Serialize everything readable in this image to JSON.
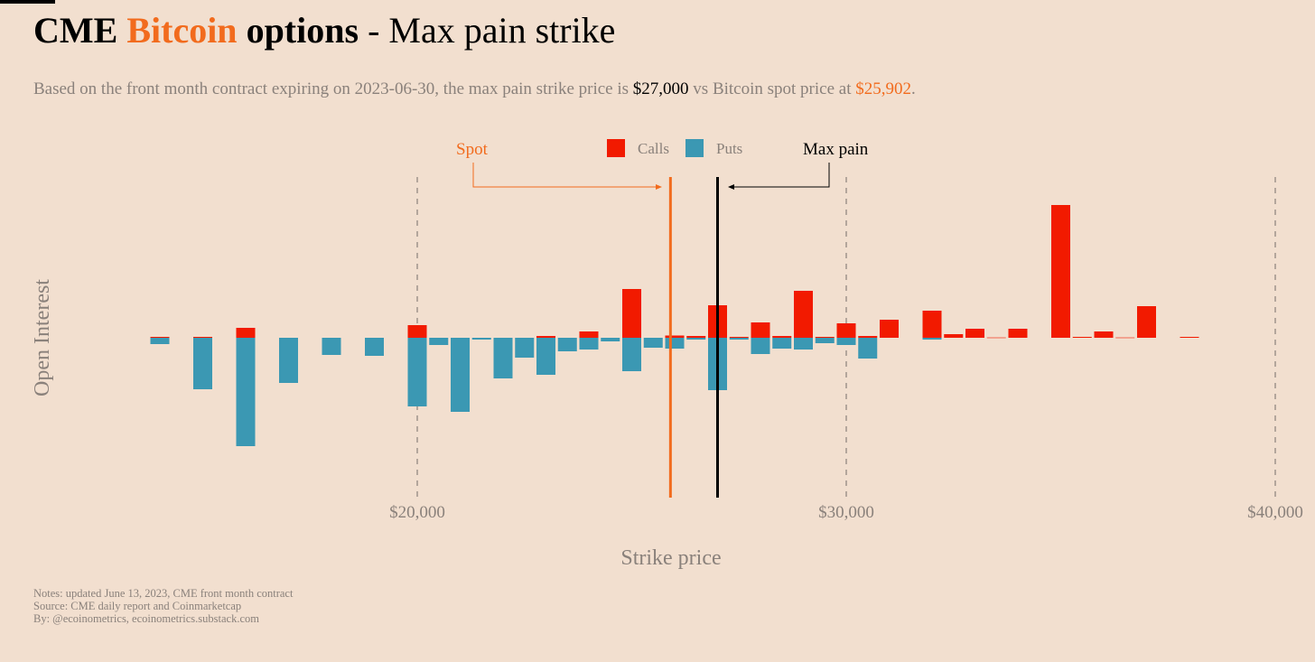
{
  "header": {
    "title_part1": "CME",
    "title_part2": "Bitcoin",
    "title_part3": "options",
    "title_part4": "- Max pain strike",
    "subtitle_part1": "Based on the front month contract expiring on 2023-06-30, the max pain strike price is",
    "subtitle_maxpain": "$27,000",
    "subtitle_part2": "vs Bitcoin spot price at",
    "subtitle_spot": "$25,902",
    "subtitle_end": "."
  },
  "notes": [
    "Notes: updated June 13, 2023, CME front month contract",
    "Source: CME daily report and Coinmarketcap",
    "By: @ecoinometrics, ecoinometrics.substack.com"
  ],
  "colors": {
    "background": "#f2dfcf",
    "calls": "#f21a00",
    "puts": "#3b98b3",
    "spot": "#f26b1d",
    "maxpain": "#000000"
  },
  "chart_data": {
    "type": "bar",
    "title": "CME Bitcoin options - Max pain strike",
    "xlabel": "Strike price",
    "ylabel": "Open Interest",
    "xlim": [
      11500,
      40000
    ],
    "x_ticks": [
      20000,
      30000,
      40000
    ],
    "x_tick_labels": [
      "$20,000",
      "$30,000",
      "$40,000"
    ],
    "grid": "vertical dashed at x ticks",
    "legend": {
      "position": "top-center",
      "entries": [
        "Calls",
        "Puts"
      ]
    },
    "annotations": {
      "spot": {
        "label": "Spot",
        "value": 25902
      },
      "maxpain": {
        "label": "Max pain",
        "value": 27000
      }
    },
    "units_note": "relative open interest (no y scale shown); calls drawn up, puts drawn down",
    "strikes": [
      14000,
      15000,
      16000,
      17000,
      18000,
      19000,
      20000,
      20500,
      21000,
      21500,
      22000,
      22500,
      23000,
      23500,
      24000,
      24500,
      25000,
      25500,
      26000,
      26500,
      27000,
      27500,
      28000,
      28500,
      29000,
      29500,
      30000,
      30500,
      31000,
      32000,
      32500,
      33000,
      33500,
      34000,
      35000,
      35500,
      36000,
      36500,
      37000,
      38000
    ],
    "series": [
      {
        "name": "Calls",
        "values": [
          1,
          1,
          11,
          0,
          0,
          0,
          14,
          0,
          0,
          0,
          0,
          0,
          2,
          0,
          7,
          0,
          54,
          0,
          2.5,
          2,
          36,
          1,
          17,
          2,
          52,
          1,
          16,
          2,
          20,
          30,
          4,
          10,
          0.3,
          10,
          147,
          1,
          7,
          0.3,
          35,
          1
        ]
      },
      {
        "name": "Puts",
        "values": [
          7,
          57,
          120,
          50,
          19,
          20,
          76,
          8,
          82,
          2,
          45,
          22,
          41,
          15,
          13,
          4,
          37,
          11,
          12,
          2,
          58,
          2,
          18,
          12,
          13,
          6,
          8,
          23,
          0,
          2,
          0,
          0,
          0,
          0,
          0,
          0,
          0,
          0,
          0,
          0
        ]
      }
    ]
  }
}
